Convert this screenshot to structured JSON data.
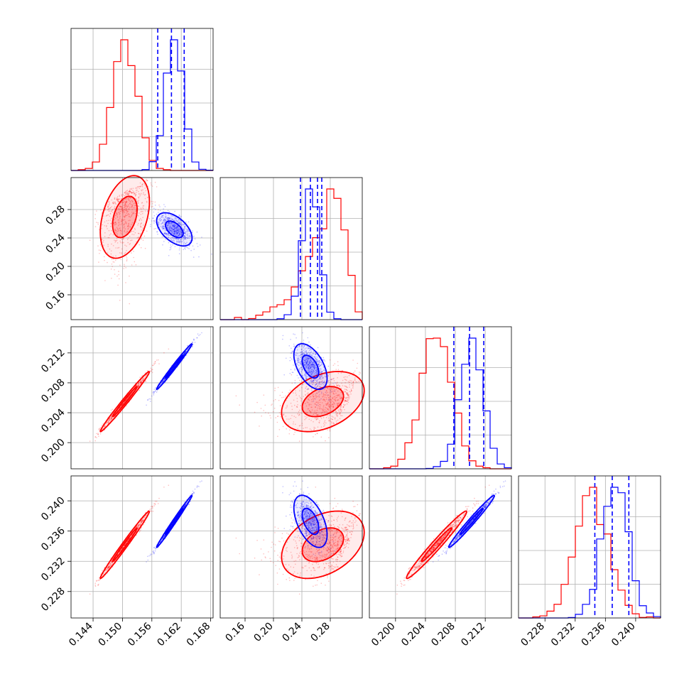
{
  "chart_data": {
    "type": "scatter",
    "title": "",
    "parameters": [
      {
        "id": "p0",
        "range": [
          0.1395,
          0.1685
        ],
        "ticks": [
          "0.144",
          "0.150",
          "0.156",
          "0.162",
          "0.168"
        ],
        "tick_values": [
          0.144,
          0.15,
          0.156,
          0.162,
          0.168
        ]
      },
      {
        "id": "p1",
        "range": [
          0.125,
          0.325
        ],
        "ticks": [
          "0.16",
          "0.20",
          "0.24",
          "0.28"
        ],
        "tick_values": [
          0.16,
          0.2,
          0.24,
          0.28
        ]
      },
      {
        "id": "p2",
        "range": [
          0.1965,
          0.2155
        ],
        "ticks": [
          "0.200",
          "0.204",
          "0.208",
          "0.212"
        ],
        "tick_values": [
          0.2,
          0.204,
          0.208,
          0.212
        ]
      },
      {
        "id": "p3",
        "range": [
          0.2245,
          0.2433
        ],
        "ticks": [
          "0.228",
          "0.232",
          "0.236",
          "0.240"
        ],
        "tick_values": [
          0.228,
          0.232,
          0.236,
          0.24
        ]
      }
    ],
    "series": [
      {
        "color": "#ff0000",
        "mean": [
          0.1505,
          0.292,
          0.2055,
          0.2342
        ],
        "std": [
          0.0025,
          0.03,
          0.002,
          0.0022
        ],
        "hist_peaks": [
          1.0,
          1.0,
          1.0,
          1.0
        ]
      },
      {
        "color": "#0000ff",
        "mean": [
          0.1605,
          0.252,
          0.2101,
          0.2372
        ],
        "std": [
          0.0018,
          0.012,
          0.0015,
          0.0017
        ],
        "hist_peaks": [
          1.0,
          1.0,
          1.0,
          1.0
        ]
      }
    ],
    "quantile_lines": [
      {
        "parameter": "p0",
        "values": [
          0.1572,
          0.16,
          0.1626
        ]
      },
      {
        "parameter": "p1",
        "values": [
          0.238,
          0.252,
          0.262,
          0.268
        ]
      },
      {
        "parameter": "p2",
        "values": [
          0.2078,
          0.2099,
          0.2118
        ]
      },
      {
        "parameter": "p3",
        "values": [
          0.2346,
          0.2369,
          0.2391
        ]
      }
    ],
    "grid": true
  }
}
